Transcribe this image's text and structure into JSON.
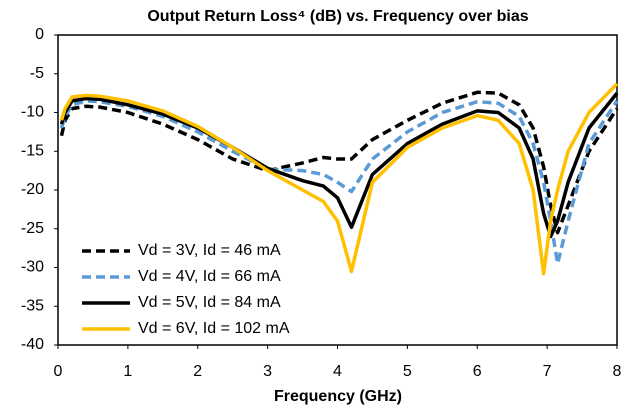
{
  "chart_data": {
    "type": "line",
    "title": "Output Return Loss⁴ (dB) vs. Frequency over bias",
    "xlabel": "Frequency (GHz)",
    "x": [
      0.05,
      0.1,
      0.2,
      0.4,
      0.6,
      1,
      1.5,
      2,
      2.5,
      3,
      3.5,
      3.8,
      4,
      4.2,
      4.5,
      5,
      5.5,
      6,
      6.3,
      6.6,
      6.8,
      6.95,
      7.05,
      7.15,
      7.3,
      7.6,
      8
    ],
    "series": [
      {
        "name": "Vd = 3V, Id = 46 mA",
        "color": "#000000",
        "dash": true,
        "values": [
          -13,
          -11,
          -9.5,
          -9.2,
          -9.3,
          -10,
          -11.5,
          -13.5,
          -16,
          -17.5,
          -16.5,
          -15.8,
          -16,
          -16,
          -13.5,
          -11,
          -8.8,
          -7.4,
          -7.5,
          -9,
          -12,
          -17,
          -22,
          -25.5,
          -22,
          -15,
          -9.5
        ]
      },
      {
        "name": "Vd = 4V, Id = 66 mA",
        "color": "#5b9bd5",
        "dash": true,
        "values": [
          -12,
          -10.5,
          -9,
          -8.5,
          -8.6,
          -9.2,
          -10.5,
          -12.5,
          -15,
          -17.3,
          -17.5,
          -18,
          -19,
          -20.2,
          -16,
          -12.5,
          -10,
          -8.6,
          -8.8,
          -10.5,
          -14,
          -19,
          -24,
          -29.5,
          -24,
          -14,
          -8.5
        ]
      },
      {
        "name": "Vd = 5V, Id = 84 mA",
        "color": "#000000",
        "dash": false,
        "values": [
          -11.5,
          -10,
          -8.5,
          -8.2,
          -8.3,
          -9,
          -10.2,
          -12,
          -14.5,
          -17.2,
          -18.8,
          -19.5,
          -21,
          -24.8,
          -18,
          -14,
          -11.5,
          -9.8,
          -10,
          -12,
          -16,
          -23,
          -26,
          -24,
          -19,
          -12,
          -7.5
        ]
      },
      {
        "name": "Vd = 6V, Id = 102 mA",
        "color": "#ffc000",
        "dash": false,
        "values": [
          -11,
          -9.5,
          -8,
          -7.8,
          -7.9,
          -8.5,
          -9.8,
          -11.8,
          -14.5,
          -17.5,
          -20,
          -21.5,
          -24,
          -30.5,
          -19,
          -14.5,
          -12,
          -10.4,
          -11,
          -14,
          -20,
          -30.8,
          -24,
          -20,
          -15,
          -10,
          -6.3
        ]
      }
    ],
    "xlim": [
      0,
      8
    ],
    "xticks": [
      0,
      1,
      2,
      3,
      4,
      5,
      6,
      7,
      8
    ],
    "ylim": [
      -40,
      0
    ],
    "yticks": [
      0,
      -5,
      -10,
      -15,
      -20,
      -25,
      -30,
      -35,
      -40
    ],
    "legend": "lower left"
  }
}
